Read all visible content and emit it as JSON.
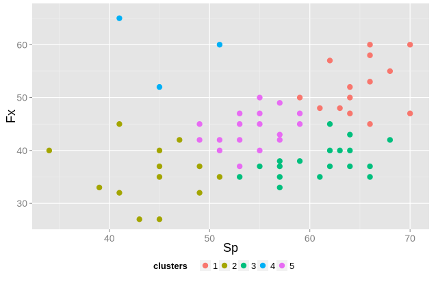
{
  "chart_data": {
    "type": "scatter",
    "title": "",
    "xlabel": "Sp",
    "ylabel": "Fx",
    "xlim": [
      32.3,
      71.9
    ],
    "ylim": [
      25.1,
      67.8
    ],
    "xticks": [
      40,
      50,
      60,
      70
    ],
    "yticks": [
      30,
      40,
      50,
      60
    ],
    "grid": true,
    "legend": {
      "title": "clusters",
      "placement": "bottom",
      "entries": [
        "1",
        "2",
        "3",
        "4",
        "5"
      ]
    },
    "colors": {
      "1": "#F8766D",
      "2": "#A3A500",
      "3": "#00BF7D",
      "4": "#00B0F6",
      "5": "#E76BF3"
    },
    "series": [
      {
        "name": "1",
        "points": [
          [
            59,
            50
          ],
          [
            61,
            48
          ],
          [
            62,
            57
          ],
          [
            63,
            48
          ],
          [
            64,
            52
          ],
          [
            64,
            50
          ],
          [
            64,
            47
          ],
          [
            66,
            60
          ],
          [
            66,
            58
          ],
          [
            66,
            53
          ],
          [
            66,
            45
          ],
          [
            68,
            55
          ],
          [
            70,
            60
          ],
          [
            70,
            47
          ]
        ]
      },
      {
        "name": "2",
        "points": [
          [
            34,
            40
          ],
          [
            39,
            33
          ],
          [
            41,
            45
          ],
          [
            41,
            32
          ],
          [
            43,
            27
          ],
          [
            45,
            40
          ],
          [
            45,
            37
          ],
          [
            45,
            35
          ],
          [
            45,
            27
          ],
          [
            47,
            42
          ],
          [
            49,
            37
          ],
          [
            49,
            32
          ],
          [
            51,
            35
          ]
        ]
      },
      {
        "name": "3",
        "points": [
          [
            53,
            35
          ],
          [
            55,
            37
          ],
          [
            57,
            38
          ],
          [
            57,
            37
          ],
          [
            57,
            35
          ],
          [
            57,
            33
          ],
          [
            59,
            38
          ],
          [
            61,
            35
          ],
          [
            62,
            45
          ],
          [
            62,
            40
          ],
          [
            62,
            37
          ],
          [
            63,
            40
          ],
          [
            64,
            43
          ],
          [
            64,
            40
          ],
          [
            64,
            37
          ],
          [
            66,
            37
          ],
          [
            66,
            35
          ],
          [
            68,
            42
          ]
        ]
      },
      {
        "name": "4",
        "points": [
          [
            41,
            65
          ],
          [
            45,
            52
          ],
          [
            51,
            60
          ]
        ]
      },
      {
        "name": "5",
        "points": [
          [
            49,
            45
          ],
          [
            49,
            42
          ],
          [
            51,
            42
          ],
          [
            51,
            40
          ],
          [
            53,
            47
          ],
          [
            53,
            45
          ],
          [
            53,
            42
          ],
          [
            53,
            37
          ],
          [
            55,
            50
          ],
          [
            55,
            47
          ],
          [
            55,
            45
          ],
          [
            55,
            40
          ],
          [
            57,
            49
          ],
          [
            57,
            43
          ],
          [
            57,
            42
          ],
          [
            59,
            47
          ],
          [
            59,
            45
          ]
        ]
      }
    ]
  }
}
